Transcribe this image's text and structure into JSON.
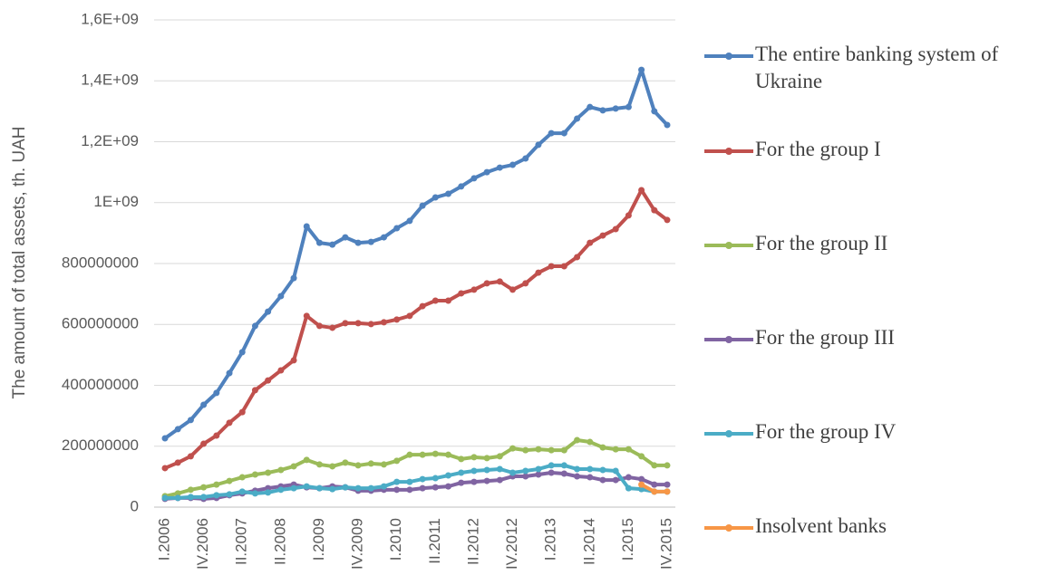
{
  "chart_data": {
    "type": "line",
    "y_label": "The amount of total assets, th. UAH",
    "categories": [
      "I.2006",
      null,
      null,
      "IV.2006",
      null,
      null,
      "II.2007",
      null,
      null,
      "II.2008",
      null,
      null,
      "I.2009",
      null,
      null,
      "IV.2009",
      null,
      null,
      "I.2010",
      null,
      null,
      "II.2011",
      null,
      null,
      "II.2012",
      null,
      null,
      "IV.2012",
      null,
      null,
      "I.2013",
      null,
      null,
      "II.2014",
      null,
      null,
      "I.2015",
      null,
      null,
      "IV.2015"
    ],
    "ylim": [
      0,
      1600000000
    ],
    "yticks": [
      0,
      200000000,
      400000000,
      600000000,
      800000000,
      {
        "value": 1000000000,
        "label": "1E+09"
      },
      {
        "value": 1200000000,
        "label": "1,2E+09"
      },
      {
        "value": 1400000000,
        "label": "1,4E+09"
      },
      {
        "value": 1600000000,
        "label": "1,6E+09"
      }
    ],
    "grid": true,
    "legend": "right",
    "series": [
      {
        "name": "The entire banking system of Ukraine",
        "color": "#4f81bd",
        "values": [
          226000000,
          256000000,
          286000000,
          336000000,
          375000000,
          440000000,
          509000000,
          595000000,
          642000000,
          693000000,
          752000000,
          922000000,
          868000000,
          862000000,
          886000000,
          868000000,
          871000000,
          886000000,
          916000000,
          940000000,
          990000000,
          1017000000,
          1029000000,
          1053000000,
          1080000000,
          1100000000,
          1115000000,
          1124000000,
          1145000000,
          1190000000,
          1228000000,
          1228000000,
          1276000000,
          1314000000,
          1303000000,
          1309000000,
          1314000000,
          1436000000,
          1300000000,
          1255000000
        ]
      },
      {
        "name": "For the group I",
        "color": "#c0504d",
        "values": [
          128000000,
          146000000,
          167000000,
          208000000,
          235000000,
          277000000,
          312000000,
          384000000,
          416000000,
          449000000,
          482000000,
          628000000,
          595000000,
          589000000,
          604000000,
          604000000,
          601000000,
          607000000,
          616000000,
          628000000,
          660000000,
          678000000,
          678000000,
          702000000,
          714000000,
          735000000,
          741000000,
          714000000,
          735000000,
          770000000,
          791000000,
          791000000,
          821000000,
          868000000,
          892000000,
          913000000,
          958000000,
          1041000000,
          975000000,
          943000000
        ]
      },
      {
        "name": "For the group II",
        "color": "#9bbb59",
        "values": [
          36000000,
          45000000,
          57000000,
          65000000,
          74000000,
          86000000,
          98000000,
          107000000,
          113000000,
          122000000,
          134000000,
          155000000,
          140000000,
          134000000,
          146000000,
          137000000,
          143000000,
          140000000,
          152000000,
          172000000,
          172000000,
          175000000,
          172000000,
          158000000,
          164000000,
          161000000,
          167000000,
          193000000,
          187000000,
          190000000,
          187000000,
          187000000,
          220000000,
          214000000,
          196000000,
          190000000,
          190000000,
          167000000,
          137000000,
          137000000
        ]
      },
      {
        "name": "For the group III",
        "color": "#8064a2",
        "values": [
          27000000,
          30000000,
          30000000,
          27000000,
          30000000,
          39000000,
          45000000,
          54000000,
          62000000,
          68000000,
          74000000,
          65000000,
          62000000,
          68000000,
          65000000,
          54000000,
          54000000,
          57000000,
          57000000,
          57000000,
          62000000,
          65000000,
          68000000,
          80000000,
          83000000,
          86000000,
          89000000,
          101000000,
          101000000,
          107000000,
          113000000,
          110000000,
          101000000,
          98000000,
          89000000,
          89000000,
          98000000,
          92000000,
          74000000,
          74000000
        ]
      },
      {
        "name": "For the group IV",
        "color": "#4bacc6",
        "values": [
          30000000,
          30000000,
          33000000,
          33000000,
          39000000,
          42000000,
          51000000,
          45000000,
          48000000,
          57000000,
          62000000,
          68000000,
          62000000,
          59000000,
          65000000,
          62000000,
          62000000,
          68000000,
          83000000,
          83000000,
          92000000,
          95000000,
          104000000,
          113000000,
          119000000,
          122000000,
          125000000,
          113000000,
          119000000,
          125000000,
          137000000,
          137000000,
          125000000,
          125000000,
          122000000,
          119000000,
          62000000,
          59000000,
          51000000,
          51000000
        ]
      },
      {
        "name": "Insolvent banks",
        "color": "#f79646",
        "values": [
          null,
          null,
          null,
          null,
          null,
          null,
          null,
          null,
          null,
          null,
          null,
          null,
          null,
          null,
          null,
          null,
          null,
          null,
          null,
          null,
          null,
          null,
          null,
          null,
          null,
          null,
          null,
          null,
          null,
          null,
          null,
          null,
          null,
          null,
          null,
          null,
          null,
          74000000,
          51000000,
          51000000
        ]
      }
    ]
  }
}
